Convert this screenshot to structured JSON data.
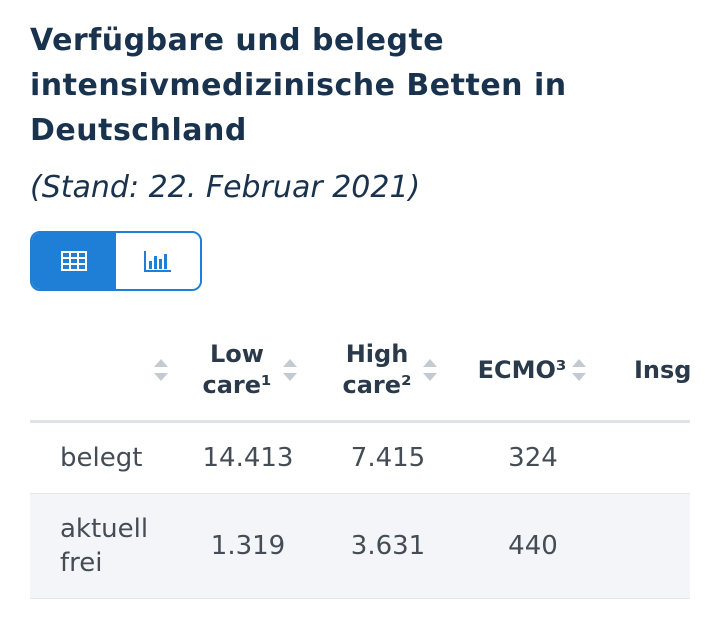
{
  "header": {
    "title": "Verfügbare und belegte intensivmedizinische Betten in Deutschland",
    "subtitle": "(Stand: 22. Februar 2021)"
  },
  "view_toggle": {
    "options": [
      {
        "icon": "table-icon",
        "active": true
      },
      {
        "icon": "bar-chart-icon",
        "active": false
      }
    ],
    "accent_color": "#1f7fd6"
  },
  "table": {
    "columns": [
      "",
      "Low care¹",
      "High care²",
      "ECMO³",
      "Insgesamt"
    ],
    "rows": [
      {
        "label": "belegt",
        "low_care": "14.413",
        "high_care": "7.415",
        "ecmo": "324"
      },
      {
        "label": "aktuell frei",
        "low_care": "1.319",
        "high_care": "3.631",
        "ecmo": "440"
      }
    ]
  }
}
